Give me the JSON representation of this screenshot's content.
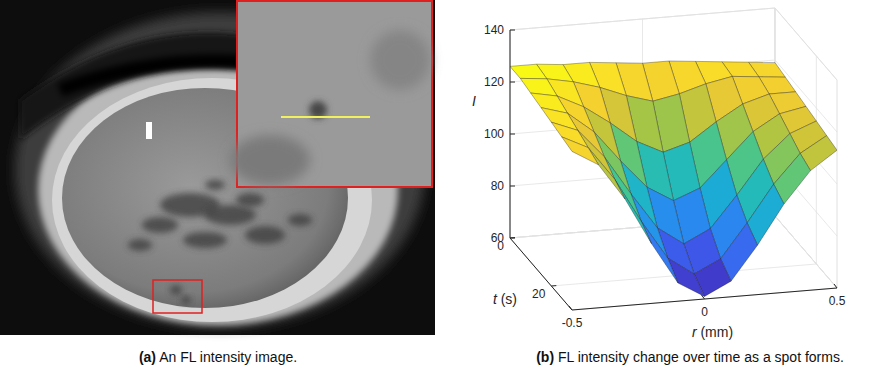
{
  "image_panel": {
    "label": "(a)",
    "caption": "An FL intensity image."
  },
  "chart_data": {
    "type": "surface",
    "label": "(b)",
    "caption": "FL intensity change over time as a spot forms.",
    "x_label": "r (mm)",
    "y_label": "t (s)",
    "z_label": "I",
    "x": [
      -0.5,
      -0.4,
      -0.3,
      -0.2,
      -0.1,
      0,
      0.1,
      0.2,
      0.3,
      0.4,
      0.5
    ],
    "y": [
      0,
      5,
      10,
      15,
      20,
      25,
      30
    ],
    "z": [
      [
        126,
        126,
        125,
        125,
        124,
        123,
        123,
        122,
        121,
        120,
        119
      ],
      [
        126,
        125,
        123,
        120,
        116,
        113,
        115,
        118,
        120,
        119,
        118
      ],
      [
        125,
        123,
        118,
        111,
        103,
        98,
        101,
        108,
        114,
        117,
        117
      ],
      [
        124,
        121,
        113,
        101,
        90,
        84,
        88,
        98,
        108,
        114,
        116
      ],
      [
        123,
        119,
        108,
        93,
        79,
        72,
        77,
        89,
        102,
        111,
        115
      ],
      [
        122,
        117,
        104,
        87,
        72,
        65,
        70,
        83,
        97,
        108,
        114
      ],
      [
        121,
        115,
        101,
        83,
        67,
        61,
        66,
        79,
        94,
        106,
        113
      ]
    ],
    "xlim": [
      -0.5,
      0.5
    ],
    "xticks": [
      -0.5,
      0,
      0.5
    ],
    "ylim": [
      0,
      30
    ],
    "yticks": [
      0,
      20
    ],
    "zlim": [
      60,
      140
    ],
    "zticks": [
      60,
      80,
      100,
      120,
      140
    ],
    "grid": true
  }
}
